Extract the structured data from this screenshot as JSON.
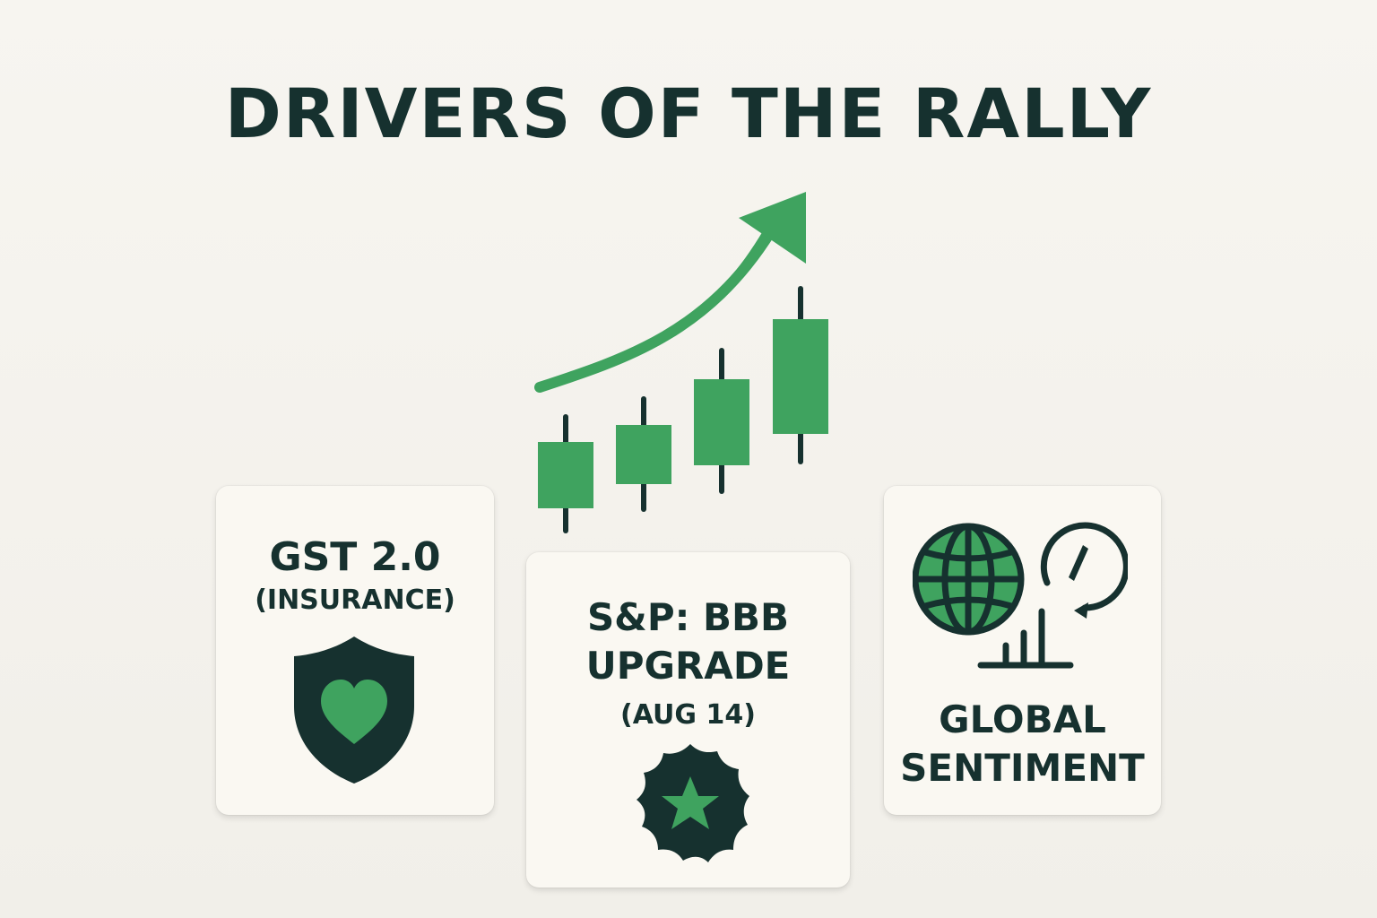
{
  "title": "DRIVERS OF THE RALLY",
  "colors": {
    "accent": "#3fa35f",
    "dark": "#16312f",
    "card": "#faf8f2"
  },
  "hero": {
    "icon": "rising-candlestick-chart-with-arrow-icon",
    "candles": 4
  },
  "cards": [
    {
      "line1": "GST 2.0",
      "line2": "(INSURANCE)",
      "icon": "shield-heart-icon"
    },
    {
      "line1": "S&P: BBB",
      "line2": "UPGRADE",
      "line3": "(AUG 14)",
      "icon": "star-badge-icon"
    },
    {
      "line1": "GLOBAL",
      "line2": "SENTIMENT",
      "icon": "globe-and-gauge-icon"
    }
  ]
}
